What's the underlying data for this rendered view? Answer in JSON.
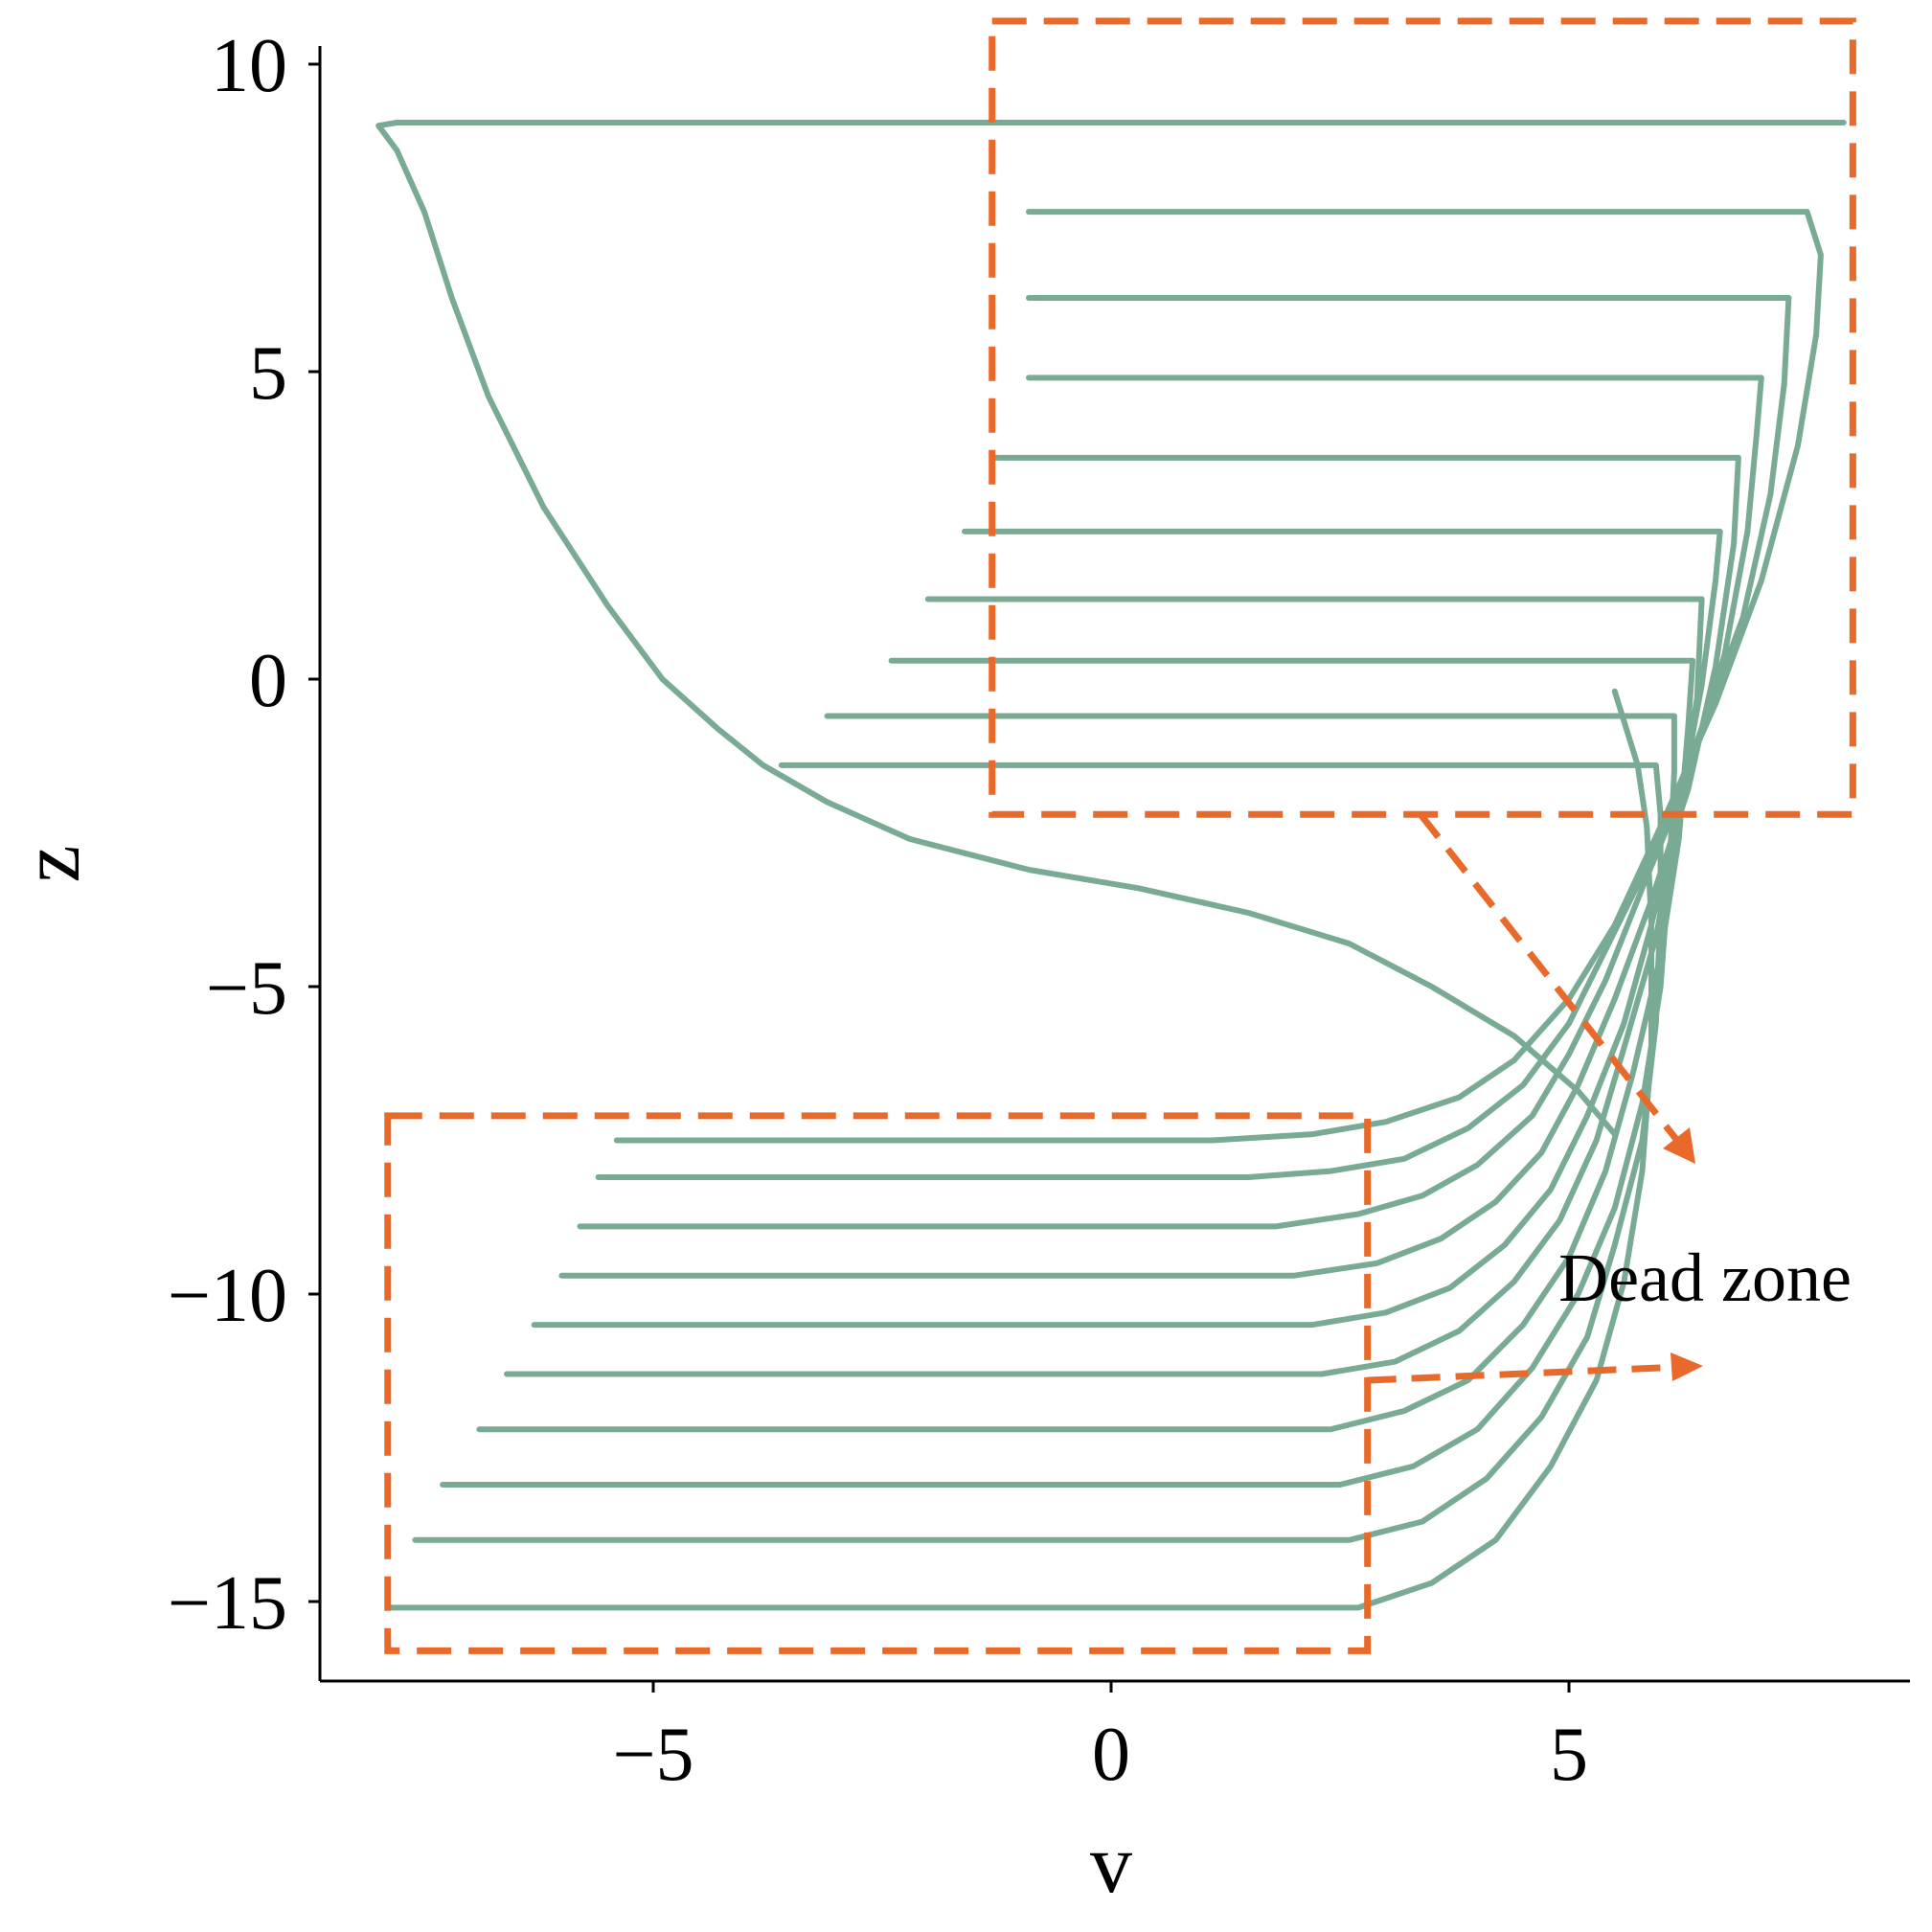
{
  "chart_data": {
    "type": "line",
    "title": "",
    "xlabel": "v",
    "ylabel": "z",
    "xlim": [
      -8.6,
      8.6
    ],
    "ylim": [
      -16.3,
      10.3
    ],
    "xticks": [
      {
        "value": -5,
        "label": "−5"
      },
      {
        "value": 0,
        "label": "0"
      },
      {
        "value": 5,
        "label": "5"
      }
    ],
    "yticks": [
      {
        "value": 10,
        "label": "10"
      },
      {
        "value": 5,
        "label": "5"
      },
      {
        "value": 0,
        "label": "0"
      },
      {
        "value": -5,
        "label": "−5"
      },
      {
        "value": -10,
        "label": "−10"
      },
      {
        "value": -15,
        "label": "−15"
      }
    ],
    "grid": false,
    "legend": "none",
    "line_color": "#78AA94",
    "series": [
      {
        "values": [
          {
            "x": 5.5,
            "y": -7.4
          },
          {
            "x": 5.1,
            "y": -6.7
          },
          {
            "x": 4.4,
            "y": -5.8
          },
          {
            "x": 3.5,
            "y": -5.0
          },
          {
            "x": 2.6,
            "y": -4.3
          },
          {
            "x": 1.5,
            "y": -3.8
          },
          {
            "x": 0.3,
            "y": -3.4
          },
          {
            "x": -0.9,
            "y": -3.1
          },
          {
            "x": -2.2,
            "y": -2.6
          },
          {
            "x": -3.1,
            "y": -2.0
          },
          {
            "x": -3.8,
            "y": -1.4
          },
          {
            "x": -4.3,
            "y": -0.8
          },
          {
            "x": -4.9,
            "y": 0.0
          },
          {
            "x": -5.5,
            "y": 1.2
          },
          {
            "x": -6.2,
            "y": 2.8
          },
          {
            "x": -6.8,
            "y": 4.6
          },
          {
            "x": -7.2,
            "y": 6.2
          },
          {
            "x": -7.5,
            "y": 7.6
          },
          {
            "x": -7.8,
            "y": 8.6
          },
          {
            "x": -8.0,
            "y": 9.0
          },
          {
            "x": -7.8,
            "y": 9.05
          },
          {
            "x": 8.0,
            "y": 9.05
          }
        ]
      },
      {
        "values": [
          {
            "x": -5.4,
            "y": -7.5
          },
          {
            "x": 1.1,
            "y": -7.5
          },
          {
            "x": 2.2,
            "y": -7.4
          },
          {
            "x": 3.0,
            "y": -7.2
          },
          {
            "x": 3.8,
            "y": -6.8
          },
          {
            "x": 4.4,
            "y": -6.2
          },
          {
            "x": 5.0,
            "y": -5.2
          },
          {
            "x": 5.5,
            "y": -4.0
          },
          {
            "x": 6.0,
            "y": -2.4
          },
          {
            "x": 6.6,
            "y": -0.4
          },
          {
            "x": 7.1,
            "y": 1.6
          },
          {
            "x": 7.5,
            "y": 3.8
          },
          {
            "x": 7.7,
            "y": 5.6
          },
          {
            "x": 7.75,
            "y": 6.9
          },
          {
            "x": 7.6,
            "y": 7.6
          },
          {
            "x": -0.9,
            "y": 7.6
          }
        ]
      },
      {
        "values": [
          {
            "x": -5.6,
            "y": -8.1
          },
          {
            "x": 1.5,
            "y": -8.1
          },
          {
            "x": 2.4,
            "y": -8.0
          },
          {
            "x": 3.2,
            "y": -7.8
          },
          {
            "x": 3.9,
            "y": -7.3
          },
          {
            "x": 4.5,
            "y": -6.6
          },
          {
            "x": 5.0,
            "y": -5.6
          },
          {
            "x": 5.4,
            "y": -4.4
          },
          {
            "x": 5.9,
            "y": -2.9
          },
          {
            "x": 6.4,
            "y": -1.0
          },
          {
            "x": 6.9,
            "y": 1.0
          },
          {
            "x": 7.2,
            "y": 3.0
          },
          {
            "x": 7.35,
            "y": 4.8
          },
          {
            "x": 7.4,
            "y": 6.2
          },
          {
            "x": -0.9,
            "y": 6.2
          }
        ]
      },
      {
        "values": [
          {
            "x": -5.8,
            "y": -8.9
          },
          {
            "x": 1.8,
            "y": -8.9
          },
          {
            "x": 2.7,
            "y": -8.7
          },
          {
            "x": 3.4,
            "y": -8.4
          },
          {
            "x": 4.0,
            "y": -7.9
          },
          {
            "x": 4.6,
            "y": -7.1
          },
          {
            "x": 5.0,
            "y": -6.1
          },
          {
            "x": 5.4,
            "y": -4.9
          },
          {
            "x": 5.8,
            "y": -3.4
          },
          {
            "x": 6.3,
            "y": -1.6
          },
          {
            "x": 6.7,
            "y": 0.4
          },
          {
            "x": 6.95,
            "y": 2.4
          },
          {
            "x": 7.05,
            "y": 4.0
          },
          {
            "x": 7.1,
            "y": 4.9
          },
          {
            "x": -0.9,
            "y": 4.9
          }
        ]
      },
      {
        "values": [
          {
            "x": -6.0,
            "y": -9.7
          },
          {
            "x": 2.0,
            "y": -9.7
          },
          {
            "x": 2.9,
            "y": -9.5
          },
          {
            "x": 3.6,
            "y": -9.1
          },
          {
            "x": 4.2,
            "y": -8.5
          },
          {
            "x": 4.7,
            "y": -7.7
          },
          {
            "x": 5.1,
            "y": -6.6
          },
          {
            "x": 5.5,
            "y": -5.2
          },
          {
            "x": 5.9,
            "y": -3.6
          },
          {
            "x": 6.3,
            "y": -1.8
          },
          {
            "x": 6.6,
            "y": 0.2
          },
          {
            "x": 6.8,
            "y": 2.2
          },
          {
            "x": 6.85,
            "y": 3.6
          },
          {
            "x": -1.3,
            "y": 3.6
          }
        ]
      },
      {
        "values": [
          {
            "x": -6.3,
            "y": -10.5
          },
          {
            "x": 2.2,
            "y": -10.5
          },
          {
            "x": 3.0,
            "y": -10.3
          },
          {
            "x": 3.7,
            "y": -9.9
          },
          {
            "x": 4.3,
            "y": -9.2
          },
          {
            "x": 4.8,
            "y": -8.3
          },
          {
            "x": 5.2,
            "y": -7.1
          },
          {
            "x": 5.6,
            "y": -5.6
          },
          {
            "x": 5.9,
            "y": -4.0
          },
          {
            "x": 6.2,
            "y": -2.1
          },
          {
            "x": 6.45,
            "y": -0.1
          },
          {
            "x": 6.6,
            "y": 1.6
          },
          {
            "x": 6.65,
            "y": 2.4
          },
          {
            "x": -1.6,
            "y": 2.4
          }
        ]
      },
      {
        "values": [
          {
            "x": -6.6,
            "y": -11.3
          },
          {
            "x": 2.3,
            "y": -11.3
          },
          {
            "x": 3.1,
            "y": -11.1
          },
          {
            "x": 3.8,
            "y": -10.6
          },
          {
            "x": 4.4,
            "y": -9.8
          },
          {
            "x": 4.9,
            "y": -8.8
          },
          {
            "x": 5.3,
            "y": -7.5
          },
          {
            "x": 5.6,
            "y": -6.0
          },
          {
            "x": 5.95,
            "y": -4.2
          },
          {
            "x": 6.2,
            "y": -2.2
          },
          {
            "x": 6.4,
            "y": -0.3
          },
          {
            "x": 6.45,
            "y": 1.3
          },
          {
            "x": -2.0,
            "y": 1.3
          }
        ]
      },
      {
        "values": [
          {
            "x": -6.9,
            "y": -12.2
          },
          {
            "x": 2.4,
            "y": -12.2
          },
          {
            "x": 3.2,
            "y": -11.9
          },
          {
            "x": 3.9,
            "y": -11.4
          },
          {
            "x": 4.5,
            "y": -10.5
          },
          {
            "x": 5.0,
            "y": -9.4
          },
          {
            "x": 5.4,
            "y": -8.0
          },
          {
            "x": 5.7,
            "y": -6.4
          },
          {
            "x": 6.0,
            "y": -4.5
          },
          {
            "x": 6.2,
            "y": -2.6
          },
          {
            "x": 6.3,
            "y": -0.8
          },
          {
            "x": 6.35,
            "y": 0.3
          },
          {
            "x": -2.4,
            "y": 0.3
          }
        ]
      },
      {
        "values": [
          {
            "x": -7.3,
            "y": -13.1
          },
          {
            "x": 2.5,
            "y": -13.1
          },
          {
            "x": 3.3,
            "y": -12.8
          },
          {
            "x": 4.0,
            "y": -12.2
          },
          {
            "x": 4.6,
            "y": -11.2
          },
          {
            "x": 5.1,
            "y": -10.0
          },
          {
            "x": 5.5,
            "y": -8.6
          },
          {
            "x": 5.8,
            "y": -6.9
          },
          {
            "x": 6.0,
            "y": -5.0
          },
          {
            "x": 6.1,
            "y": -3.0
          },
          {
            "x": 6.15,
            "y": -1.5
          },
          {
            "x": 6.15,
            "y": -0.6
          },
          {
            "x": -3.1,
            "y": -0.6
          }
        ]
      },
      {
        "values": [
          {
            "x": -7.6,
            "y": -14.0
          },
          {
            "x": 2.6,
            "y": -14.0
          },
          {
            "x": 3.4,
            "y": -13.7
          },
          {
            "x": 4.1,
            "y": -13.0
          },
          {
            "x": 4.7,
            "y": -12.0
          },
          {
            "x": 5.2,
            "y": -10.7
          },
          {
            "x": 5.5,
            "y": -9.2
          },
          {
            "x": 5.8,
            "y": -7.5
          },
          {
            "x": 5.95,
            "y": -5.6
          },
          {
            "x": 6.0,
            "y": -3.7
          },
          {
            "x": 6.0,
            "y": -2.2
          },
          {
            "x": 5.95,
            "y": -1.4
          },
          {
            "x": -3.6,
            "y": -1.4
          }
        ]
      },
      {
        "values": [
          {
            "x": -7.9,
            "y": -15.1
          },
          {
            "x": 2.7,
            "y": -15.1
          },
          {
            "x": 3.5,
            "y": -14.7
          },
          {
            "x": 4.2,
            "y": -14.0
          },
          {
            "x": 4.8,
            "y": -12.8
          },
          {
            "x": 5.3,
            "y": -11.4
          },
          {
            "x": 5.6,
            "y": -9.8
          },
          {
            "x": 5.8,
            "y": -8.0
          },
          {
            "x": 5.9,
            "y": -6.0
          },
          {
            "x": 5.9,
            "y": -4.0
          },
          {
            "x": 5.85,
            "y": -2.4
          },
          {
            "x": 5.75,
            "y": -1.4
          },
          {
            "x": 5.5,
            "y": -0.2
          }
        ]
      }
    ],
    "annotations": [
      {
        "text": "Dead zone",
        "color": "#E8692A"
      }
    ],
    "dead_zone_boxes": [
      {
        "x0": -1.3,
        "x1": 8.1,
        "y0": -2.2,
        "y1": 10.7
      },
      {
        "x0": -7.9,
        "x1": 2.8,
        "y0": -15.8,
        "y1": -7.1
      }
    ]
  }
}
